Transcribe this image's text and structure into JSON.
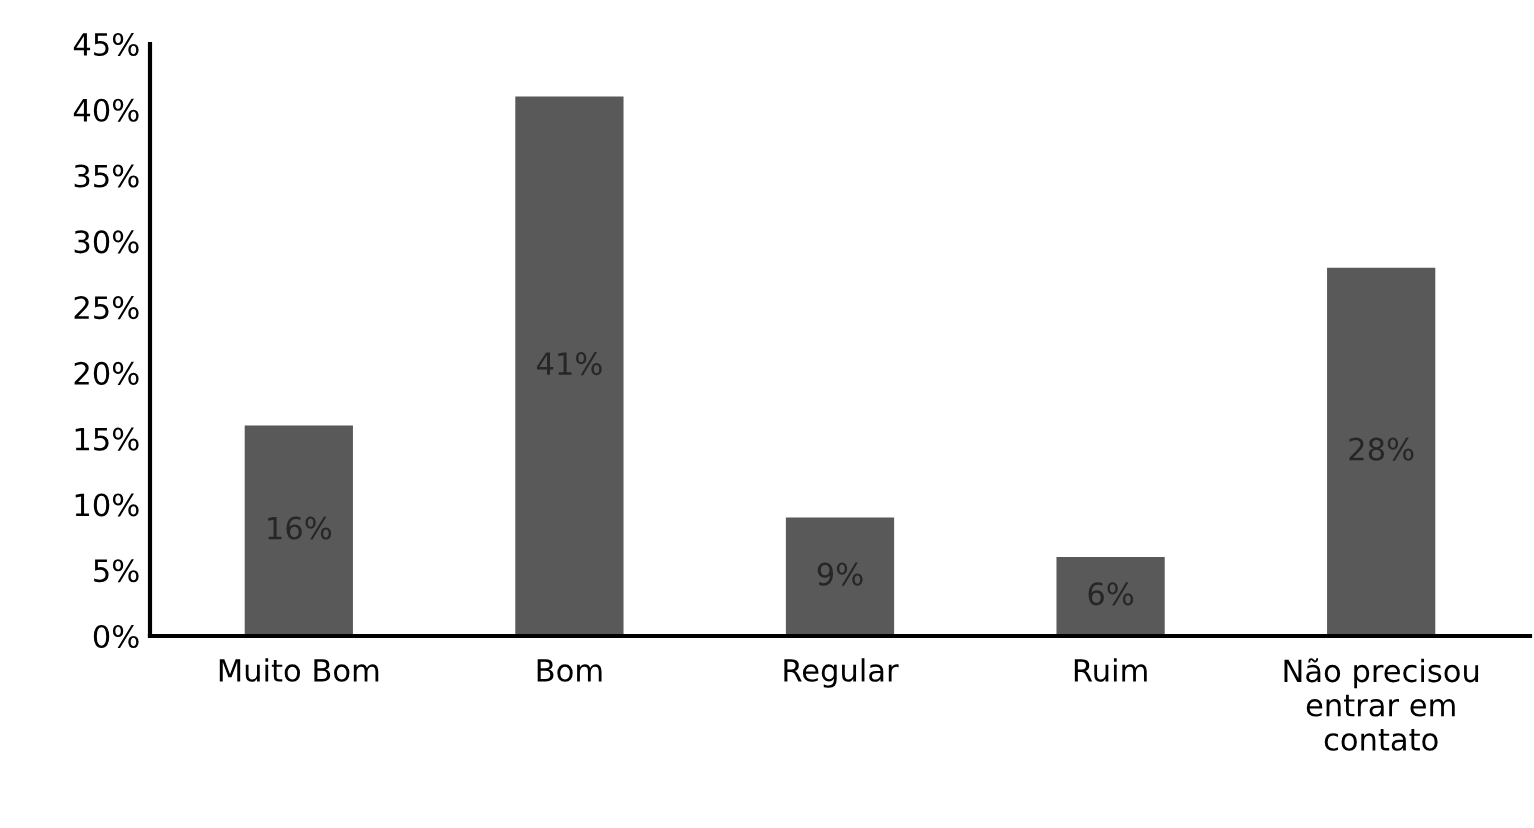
{
  "chart_data": {
    "type": "bar",
    "categories": [
      "Muito Bom",
      "Bom",
      "Regular",
      "Ruim",
      "Não precisou\nentrar em\ncontato"
    ],
    "values": [
      16,
      41,
      9,
      6,
      28
    ],
    "color": "#595959",
    "data_labels": true,
    "value_labels": [
      "16%",
      "41%",
      "9%",
      "6%",
      "28%"
    ],
    "ylim": [
      0,
      45
    ],
    "yticks": [
      {
        "value": 0,
        "label": "0%"
      },
      {
        "value": 5,
        "label": "5%"
      },
      {
        "value": 10,
        "label": "10%"
      },
      {
        "value": 15,
        "label": "15%"
      },
      {
        "value": 20,
        "label": "20%"
      },
      {
        "value": 25,
        "label": "25%"
      },
      {
        "value": 30,
        "label": "30%"
      },
      {
        "value": 35,
        "label": "35%"
      },
      {
        "value": 40,
        "label": "40%"
      },
      {
        "value": 45,
        "label": "45%"
      }
    ],
    "grid": false,
    "legend": false
  }
}
